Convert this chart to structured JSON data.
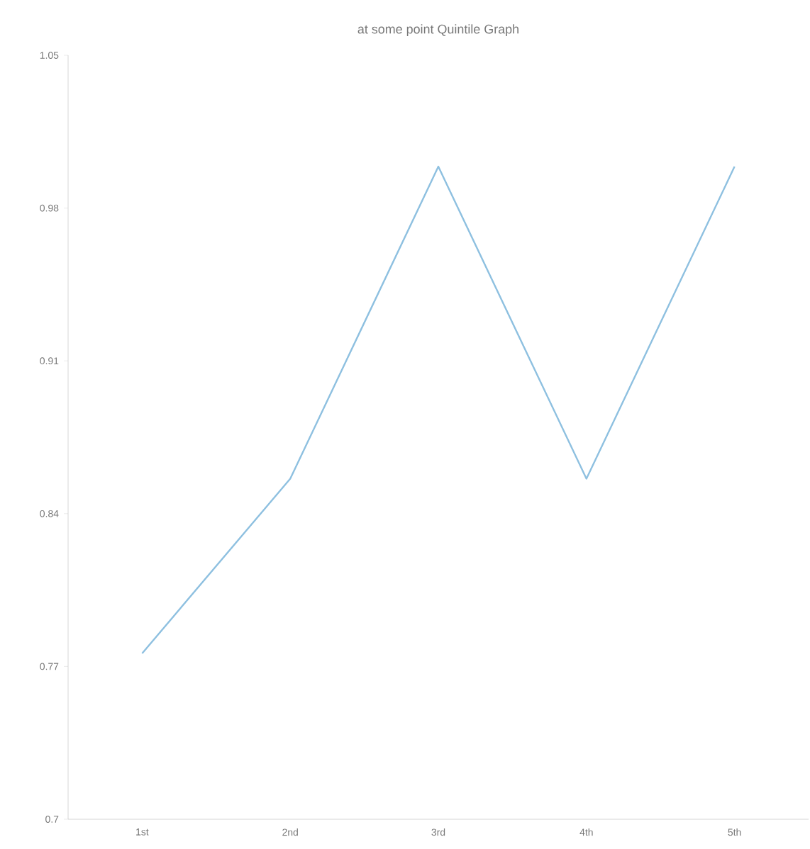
{
  "chart_data": {
    "type": "line",
    "title": "at some point Quintile Graph",
    "categories": [
      "1st",
      "2nd",
      "3rd",
      "4th",
      "5th"
    ],
    "values": [
      0.776,
      0.856,
      0.999,
      0.856,
      0.999
    ],
    "color": "#8ec0e0",
    "ylim": [
      0.7,
      1.05
    ],
    "yticks": [
      0.7,
      0.77,
      0.84,
      0.91,
      0.98,
      1.05
    ],
    "grid": false,
    "marker": "none",
    "line_style": "solid"
  }
}
